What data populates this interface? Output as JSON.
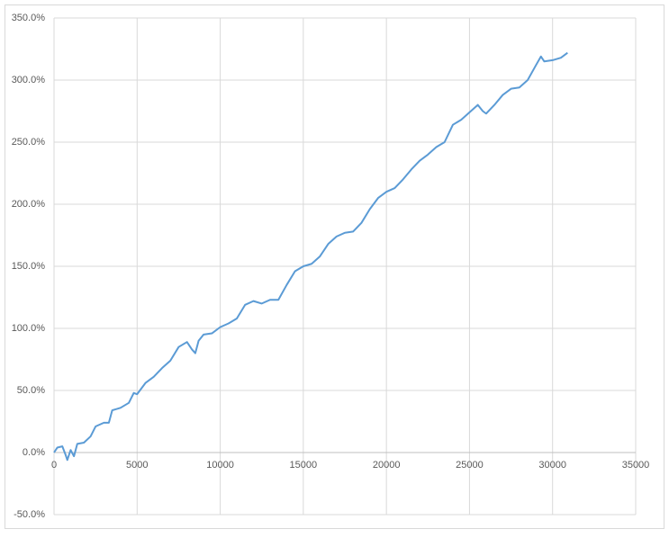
{
  "chart_data": {
    "type": "line",
    "color": "#5b9bd5",
    "grid": true,
    "x": [
      0,
      200,
      500,
      700,
      800,
      1000,
      1200,
      1400,
      1800,
      2200,
      2500,
      3000,
      3300,
      3500,
      4000,
      4500,
      4800,
      5000,
      5500,
      6000,
      6500,
      7000,
      7500,
      8000,
      8300,
      8500,
      8700,
      9000,
      9500,
      10000,
      10500,
      11000,
      11500,
      12000,
      12500,
      13000,
      13500,
      14000,
      14500,
      15000,
      15500,
      16000,
      16500,
      17000,
      17500,
      18000,
      18500,
      19000,
      19500,
      20000,
      20500,
      21000,
      21500,
      22000,
      22500,
      23000,
      23500,
      24000,
      24500,
      25000,
      25500,
      25800,
      26000,
      26500,
      27000,
      27500,
      28000,
      28500,
      29000,
      29300,
      29500,
      30000,
      30500,
      30900
    ],
    "values": [
      0,
      4,
      5,
      -2,
      -6,
      2,
      -3,
      7,
      8,
      13,
      21,
      24,
      24,
      34,
      36,
      40,
      48,
      47,
      56,
      61,
      68,
      74,
      85,
      89,
      83,
      80,
      90,
      95,
      96,
      101,
      104,
      108,
      119,
      122,
      120,
      123,
      123,
      135,
      146,
      150,
      152,
      158,
      168,
      174,
      177,
      178,
      185,
      196,
      205,
      210,
      213,
      220,
      228,
      235,
      240,
      246,
      250,
      264,
      268,
      274,
      280,
      275,
      273,
      280,
      288,
      293,
      294,
      300,
      312,
      319,
      315,
      316,
      318,
      322
    ],
    "xlim": [
      0,
      35000
    ],
    "xticks": [
      0,
      5000,
      10000,
      15000,
      20000,
      25000,
      30000,
      35000
    ],
    "ylim": [
      -50,
      350
    ],
    "yticks": [
      {
        "value": -50,
        "label": "-50.0%"
      },
      {
        "value": 0,
        "label": "0.0%"
      },
      {
        "value": 50,
        "label": "50.0%"
      },
      {
        "value": 100,
        "label": "100.0%"
      },
      {
        "value": 150,
        "label": "150.0%"
      },
      {
        "value": 200,
        "label": "200.0%"
      },
      {
        "value": 250,
        "label": "250.0%"
      },
      {
        "value": 300,
        "label": "300.0%"
      },
      {
        "value": 350,
        "label": "350.0%"
      }
    ]
  }
}
